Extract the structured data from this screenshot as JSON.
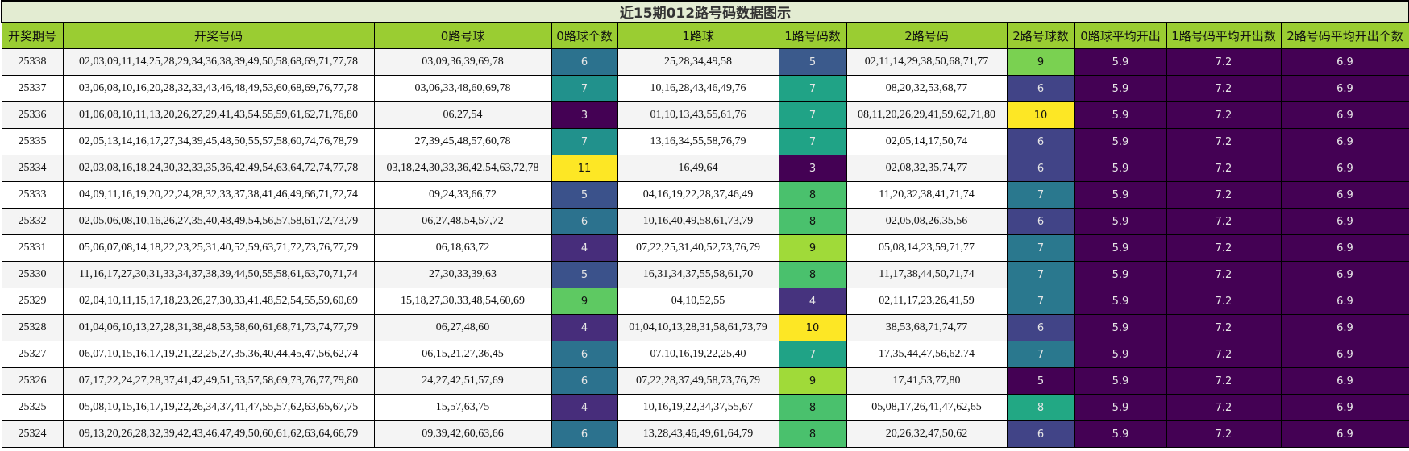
{
  "title": "近15期012路号码数据图示",
  "columns": [
    "开奖期号",
    "开奖号码",
    "0路号球",
    "0路球个数",
    "1路球",
    "1路号码数",
    "2路号码",
    "2路号球数",
    "0路球平均开出",
    "1路号码平均开出数",
    "2路号码平均开出个数"
  ],
  "averages": {
    "road0": "5.9",
    "road1": "7.2",
    "road2": "6.9",
    "color": "#440154"
  },
  "rows": [
    {
      "issue": "25338",
      "numbers": "02,03,09,11,14,25,28,29,34,36,38,39,49,50,58,68,69,71,77,78",
      "r0": "03,09,36,39,69,78",
      "c0": "6",
      "c0_bg": "#2c728e",
      "c0_fg": "#e6e6e6",
      "r1": "25,28,34,49,58",
      "c1": "5",
      "c1_bg": "#3b5a8c",
      "c1_fg": "#e6e6e6",
      "r2": "02,11,14,29,38,50,68,71,77",
      "c2": "9",
      "c2_bg": "#7ad151",
      "c2_fg": "#111111"
    },
    {
      "issue": "25337",
      "numbers": "03,06,08,10,16,20,28,32,33,43,46,48,49,53,60,68,69,76,77,78",
      "r0": "03,06,33,48,60,69,78",
      "c0": "7",
      "c0_bg": "#21918c",
      "c0_fg": "#e6e6e6",
      "r1": "10,16,28,43,46,49,76",
      "c1": "7",
      "c1_bg": "#20a386",
      "c1_fg": "#e6e6e6",
      "r2": "08,20,32,53,68,77",
      "c2": "6",
      "c2_bg": "#414487",
      "c2_fg": "#e6e6e6"
    },
    {
      "issue": "25336",
      "numbers": "01,06,08,10,11,13,20,26,27,29,41,43,54,55,59,61,62,71,76,80",
      "r0": "06,27,54",
      "c0": "3",
      "c0_bg": "#440154",
      "c0_fg": "#e6e6e6",
      "r1": "01,10,13,43,55,61,76",
      "c1": "7",
      "c1_bg": "#20a386",
      "c1_fg": "#e6e6e6",
      "r2": "08,11,20,26,29,41,59,62,71,80",
      "c2": "10",
      "c2_bg": "#fde725",
      "c2_fg": "#111111"
    },
    {
      "issue": "25335",
      "numbers": "02,05,13,14,16,17,27,34,39,45,48,50,55,57,58,60,74,76,78,79",
      "r0": "27,39,45,48,57,60,78",
      "c0": "7",
      "c0_bg": "#21918c",
      "c0_fg": "#e6e6e6",
      "r1": "13,16,34,55,58,76,79",
      "c1": "7",
      "c1_bg": "#20a386",
      "c1_fg": "#e6e6e6",
      "r2": "02,05,14,17,50,74",
      "c2": "6",
      "c2_bg": "#414487",
      "c2_fg": "#e6e6e6"
    },
    {
      "issue": "25334",
      "numbers": "02,03,08,16,18,24,30,32,33,35,36,42,49,54,63,64,72,74,77,78",
      "r0": "03,18,24,30,33,36,42,54,63,72,78",
      "c0": "11",
      "c0_bg": "#fde725",
      "c0_fg": "#111111",
      "r1": "16,49,64",
      "c1": "3",
      "c1_bg": "#440154",
      "c1_fg": "#e6e6e6",
      "r2": "02,08,32,35,74,77",
      "c2": "6",
      "c2_bg": "#414487",
      "c2_fg": "#e6e6e6"
    },
    {
      "issue": "25333",
      "numbers": "04,09,11,16,19,20,22,24,28,32,33,37,38,41,46,49,66,71,72,74",
      "r0": "09,24,33,66,72",
      "c0": "5",
      "c0_bg": "#3b528b",
      "c0_fg": "#e6e6e6",
      "r1": "04,16,19,22,28,37,46,49",
      "c1": "8",
      "c1_bg": "#4ac16d",
      "c1_fg": "#111111",
      "r2": "11,20,32,38,41,71,74",
      "c2": "7",
      "c2_bg": "#2a788e",
      "c2_fg": "#e6e6e6"
    },
    {
      "issue": "25332",
      "numbers": "02,05,06,08,10,16,26,27,35,40,48,49,54,56,57,58,61,72,73,79",
      "r0": "06,27,48,54,57,72",
      "c0": "6",
      "c0_bg": "#2c728e",
      "c0_fg": "#e6e6e6",
      "r1": "10,16,40,49,58,61,73,79",
      "c1": "8",
      "c1_bg": "#4ac16d",
      "c1_fg": "#111111",
      "r2": "02,05,08,26,35,56",
      "c2": "6",
      "c2_bg": "#414487",
      "c2_fg": "#e6e6e6"
    },
    {
      "issue": "25331",
      "numbers": "05,06,07,08,14,18,22,23,25,31,40,52,59,63,71,72,73,76,77,79",
      "r0": "06,18,63,72",
      "c0": "4",
      "c0_bg": "#472d7b",
      "c0_fg": "#e6e6e6",
      "r1": "07,22,25,31,40,52,73,76,79",
      "c1": "9",
      "c1_bg": "#a0da39",
      "c1_fg": "#111111",
      "r2": "05,08,14,23,59,71,77",
      "c2": "7",
      "c2_bg": "#2a788e",
      "c2_fg": "#e6e6e6"
    },
    {
      "issue": "25330",
      "numbers": "11,16,17,27,30,31,33,34,37,38,39,44,50,55,58,61,63,70,71,74",
      "r0": "27,30,33,39,63",
      "c0": "5",
      "c0_bg": "#3b528b",
      "c0_fg": "#e6e6e6",
      "r1": "16,31,34,37,55,58,61,70",
      "c1": "8",
      "c1_bg": "#4ac16d",
      "c1_fg": "#111111",
      "r2": "11,17,38,44,50,71,74",
      "c2": "7",
      "c2_bg": "#2a788e",
      "c2_fg": "#e6e6e6"
    },
    {
      "issue": "25329",
      "numbers": "02,04,10,11,15,17,18,23,26,27,30,33,41,48,52,54,55,59,60,69",
      "r0": "15,18,27,30,33,48,54,60,69",
      "c0": "9",
      "c0_bg": "#5ec962",
      "c0_fg": "#111111",
      "r1": "04,10,52,55",
      "c1": "4",
      "c1_bg": "#46337e",
      "c1_fg": "#e6e6e6",
      "r2": "02,11,17,23,26,41,59",
      "c2": "7",
      "c2_bg": "#2a788e",
      "c2_fg": "#e6e6e6"
    },
    {
      "issue": "25328",
      "numbers": "01,04,06,10,13,27,28,31,38,48,53,58,60,61,68,71,73,74,77,79",
      "r0": "06,27,48,60",
      "c0": "4",
      "c0_bg": "#472d7b",
      "c0_fg": "#e6e6e6",
      "r1": "01,04,10,13,28,31,58,61,73,79",
      "c1": "10",
      "c1_bg": "#fde725",
      "c1_fg": "#111111",
      "r2": "38,53,68,71,74,77",
      "c2": "6",
      "c2_bg": "#414487",
      "c2_fg": "#e6e6e6"
    },
    {
      "issue": "25327",
      "numbers": "06,07,10,15,16,17,19,21,22,25,27,35,36,40,44,45,47,56,62,74",
      "r0": "06,15,21,27,36,45",
      "c0": "6",
      "c0_bg": "#2c728e",
      "c0_fg": "#e6e6e6",
      "r1": "07,10,16,19,22,25,40",
      "c1": "7",
      "c1_bg": "#20a386",
      "c1_fg": "#e6e6e6",
      "r2": "17,35,44,47,56,62,74",
      "c2": "7",
      "c2_bg": "#2a788e",
      "c2_fg": "#e6e6e6"
    },
    {
      "issue": "25326",
      "numbers": "07,17,22,24,27,28,37,41,42,49,51,53,57,58,69,73,76,77,79,80",
      "r0": "24,27,42,51,57,69",
      "c0": "6",
      "c0_bg": "#2c728e",
      "c0_fg": "#e6e6e6",
      "r1": "07,22,28,37,49,58,73,76,79",
      "c1": "9",
      "c1_bg": "#a0da39",
      "c1_fg": "#111111",
      "r2": "17,41,53,77,80",
      "c2": "5",
      "c2_bg": "#440154",
      "c2_fg": "#e6e6e6"
    },
    {
      "issue": "25325",
      "numbers": "05,08,10,15,16,17,19,22,26,34,37,41,47,55,57,62,63,65,67,75",
      "r0": "15,57,63,75",
      "c0": "4",
      "c0_bg": "#472d7b",
      "c0_fg": "#e6e6e6",
      "r1": "10,16,19,22,34,37,55,67",
      "c1": "8",
      "c1_bg": "#4ac16d",
      "c1_fg": "#111111",
      "r2": "05,08,17,26,41,47,62,65",
      "c2": "8",
      "c2_bg": "#22a884",
      "c2_fg": "#e6e6e6"
    },
    {
      "issue": "25324",
      "numbers": "09,13,20,26,28,32,39,42,43,46,47,49,50,60,61,62,63,64,66,79",
      "r0": "09,39,42,60,63,66",
      "c0": "6",
      "c0_bg": "#2c728e",
      "c0_fg": "#e6e6e6",
      "r1": "13,28,43,46,49,61,64,79",
      "c1": "8",
      "c1_bg": "#4ac16d",
      "c1_fg": "#111111",
      "r2": "20,26,32,47,50,62",
      "c2": "6",
      "c2_bg": "#414487",
      "c2_fg": "#e6e6e6"
    }
  ]
}
